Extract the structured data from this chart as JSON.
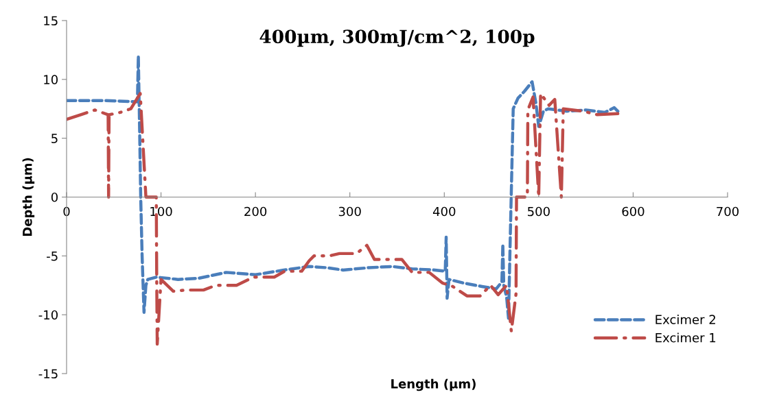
{
  "chart_data": {
    "type": "line",
    "title": "400µm, 300mJ/cm^2, 100p",
    "xlabel": "Length (µm)",
    "ylabel": "Depth (µm)",
    "xlim": [
      0,
      700
    ],
    "ylim": [
      -15,
      15
    ],
    "xticks": [
      0,
      100,
      200,
      300,
      400,
      500,
      600,
      700
    ],
    "yticks": [
      -15,
      -10,
      -5,
      0,
      5,
      10,
      15
    ],
    "grid": false,
    "legend": "bottom right",
    "marker": "none",
    "series": [
      {
        "name": "Excimer 2",
        "color": "#4a7ebb",
        "line_style": "dashed",
        "x": [
          0,
          40,
          75,
          76,
          77.5,
          78.5,
          80,
          82,
          84,
          86,
          95,
          118,
          140,
          169,
          200,
          230,
          257,
          275,
          293,
          320,
          345,
          366,
          390,
          401,
          402,
          403,
          405,
          420,
          440,
          455,
          461,
          462,
          463,
          466,
          468,
          470,
          473,
          478,
          485,
          493,
          497,
          500,
          505,
          510,
          530,
          550,
          570,
          580,
          585
        ],
        "values": [
          8.2,
          8.2,
          8.1,
          12,
          5,
          0,
          -5,
          -9.8,
          -7.5,
          -7,
          -6.8,
          -7.0,
          -6.9,
          -6.4,
          -6.6,
          -6.2,
          -5.9,
          -6.0,
          -6.2,
          -6.0,
          -5.9,
          -6.1,
          -6.2,
          -6.3,
          -3.4,
          -8.6,
          -7.0,
          -7.3,
          -7.6,
          -7.8,
          -7.2,
          -4.0,
          -7.5,
          -8.5,
          -10.3,
          -3,
          7.5,
          8.4,
          9.0,
          9.8,
          8.0,
          6.0,
          7.3,
          7.5,
          7.3,
          7.4,
          7.2,
          7.6,
          7.2
        ]
      },
      {
        "name": "Excimer 1",
        "color": "#be4b48",
        "line_style": "dashdot",
        "x": [
          0,
          15,
          30,
          44,
          44.5,
          45,
          57,
          68,
          78,
          84,
          95,
          95.5,
          96,
          100,
          113,
          126,
          145,
          158,
          180,
          198,
          220,
          231,
          249,
          257,
          262,
          278,
          289,
          307,
          318,
          326,
          344,
          355,
          366,
          384,
          398,
          409,
          424,
          438,
          449,
          457,
          466,
          471,
          476,
          476.5,
          488,
          488.5,
          494,
          500,
          502,
          511,
          517,
          524,
          526,
          547,
          562,
          587
        ],
        "values": [
          6.6,
          7.0,
          7.4,
          7.0,
          0,
          7.0,
          7.2,
          7.5,
          8.8,
          0,
          0,
          -7.5,
          -12.5,
          -7.0,
          -8.0,
          -7.9,
          -7.9,
          -7.5,
          -7.5,
          -6.8,
          -6.8,
          -6.3,
          -6.3,
          -5.4,
          -5.0,
          -5.0,
          -4.8,
          -4.8,
          -4.1,
          -5.3,
          -5.3,
          -5.3,
          -6.4,
          -6.4,
          -7.3,
          -7.6,
          -8.4,
          -8.4,
          -7.5,
          -8.3,
          -7.5,
          -11.4,
          -8.2,
          0,
          0,
          7.4,
          8.5,
          0,
          8.8,
          7.8,
          8.3,
          0,
          7.5,
          7.3,
          7.0,
          7.1
        ]
      }
    ]
  }
}
